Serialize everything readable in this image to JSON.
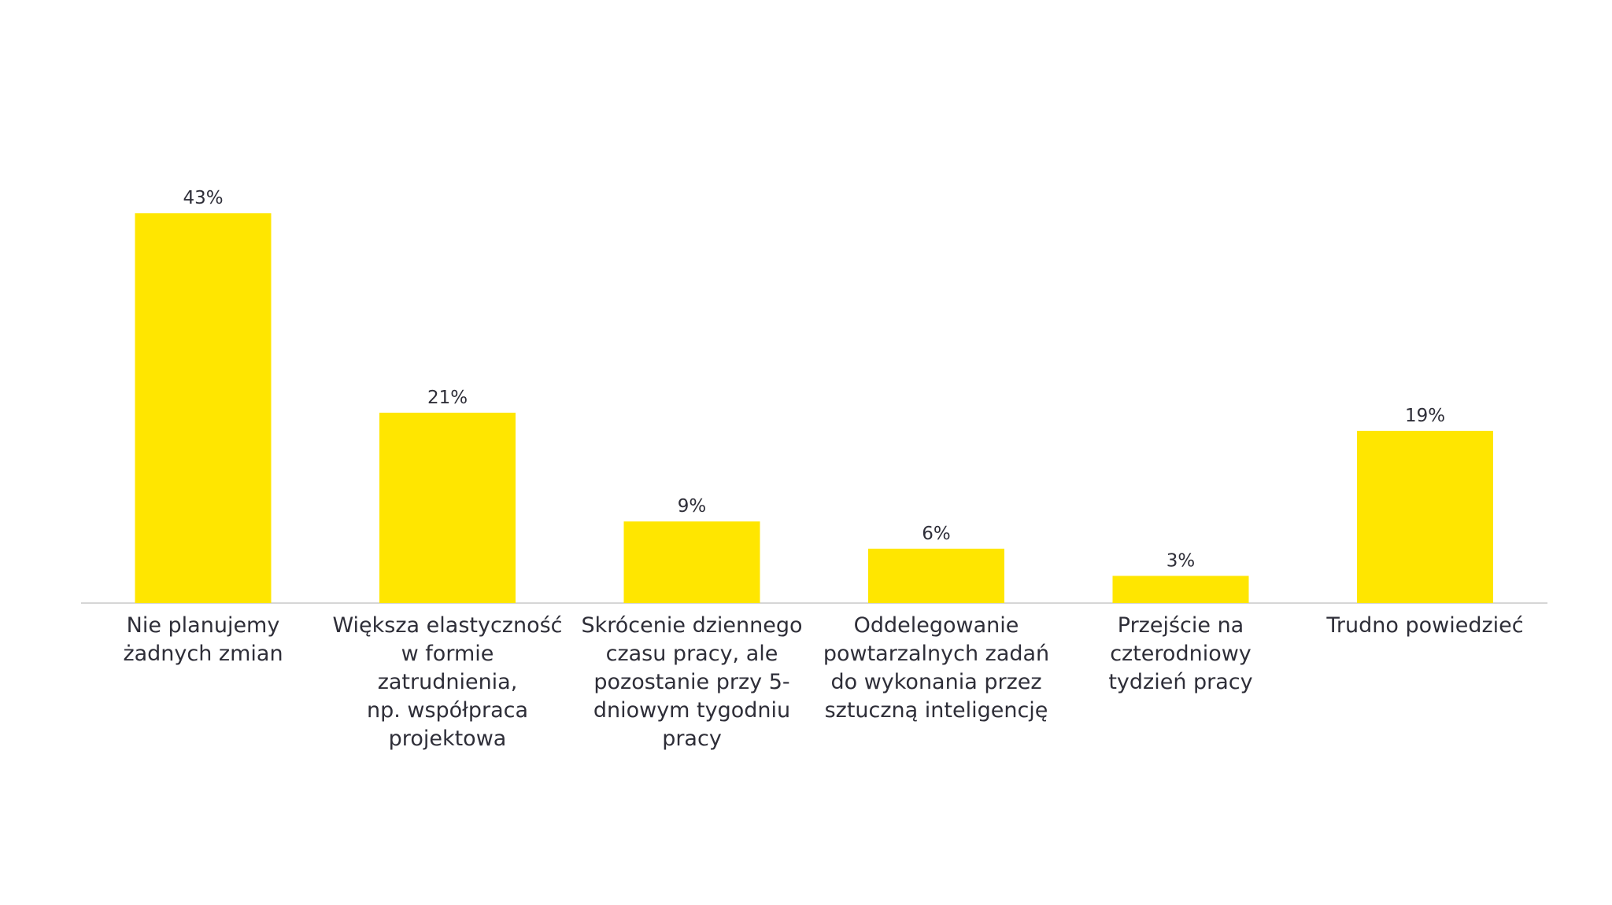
{
  "chart_data": {
    "type": "bar",
    "categories": [
      "Nie planujemy\nżadnych zmian",
      "Większa elastyczność\nw formie zatrudnienia,\nnp. współpraca\nprojektowa",
      "Skrócenie dziennego\nczasu pracy, ale\npozostanie przy 5-\ndniowym tygodniu\npracy",
      "Oddelegowanie\npowtarzalnych zadań\ndo wykonania przez\nsztuczną inteligencję",
      "Przejście na\nczterodniowy\ntydzień pracy",
      "Trudno powiedzieć"
    ],
    "values": [
      43,
      21,
      9,
      6,
      3,
      19
    ],
    "value_labels": [
      "43%",
      "21%",
      "9%",
      "6%",
      "3%",
      "19%"
    ],
    "color": "#ffe600"
  }
}
